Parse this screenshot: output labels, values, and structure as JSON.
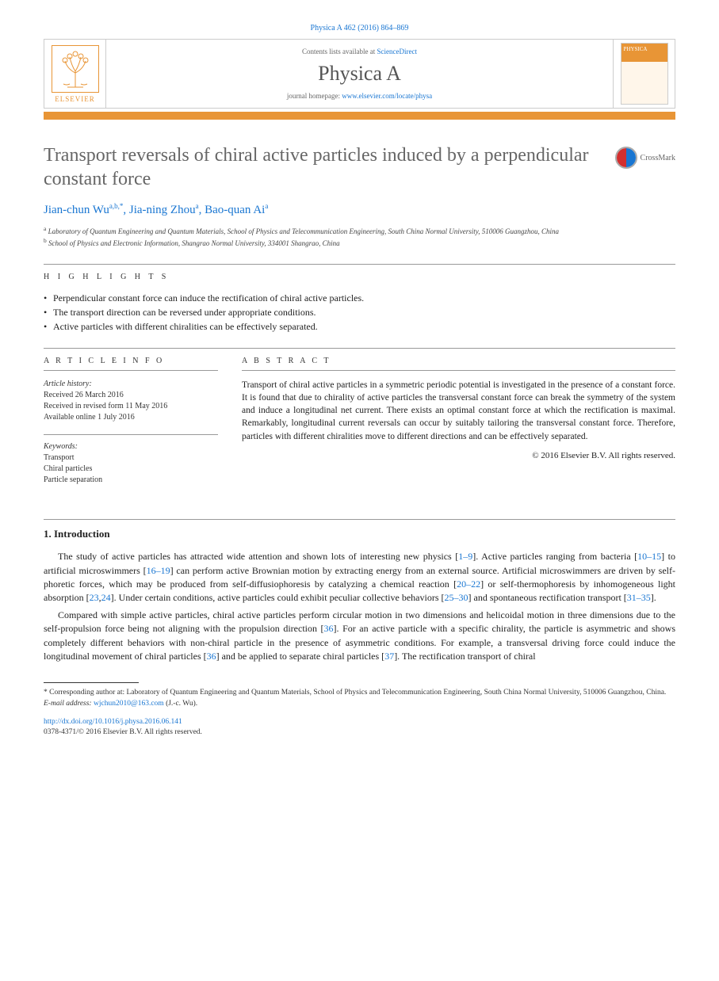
{
  "journal_ref": "Physica A 462 (2016) 864–869",
  "header": {
    "contents_prefix": "Contents lists available at ",
    "contents_link": "ScienceDirect",
    "journal_name": "Physica A",
    "homepage_prefix": "journal homepage: ",
    "homepage_url": "www.elsevier.com/locate/physa",
    "publisher": "ELSEVIER",
    "cover_label": "PHYSICA"
  },
  "title": "Transport reversals of chiral active particles induced by a perpendicular constant force",
  "crossmark": "CrossMark",
  "authors_html": "Jian-chun Wu<sup>a,b,*</sup>, Jia-ning Zhou<sup>a</sup>, Bao-quan Ai<sup>a</sup>",
  "affiliations": [
    {
      "sup": "a",
      "text": "Laboratory of Quantum Engineering and Quantum Materials, School of Physics and Telecommunication Engineering, South China Normal University, 510006 Guangzhou, China"
    },
    {
      "sup": "b",
      "text": "School of Physics and Electronic Information, Shangrao Normal University, 334001 Shangrao, China"
    }
  ],
  "highlights_label": "H I G H L I G H T S",
  "highlights": [
    "Perpendicular constant force can induce the rectification of chiral active particles.",
    "The transport direction can be reversed under appropriate conditions.",
    "Active particles with different chiralities can be effectively separated."
  ],
  "info_label": "A R T I C L E   I N F O",
  "abstract_label": "A B S T R A C T",
  "history": {
    "label": "Article history:",
    "items": [
      "Received 26 March 2016",
      "Received in revised form 11 May 2016",
      "Available online 1 July 2016"
    ]
  },
  "keywords": {
    "label": "Keywords:",
    "items": [
      "Transport",
      "Chiral particles",
      "Particle separation"
    ]
  },
  "abstract": "Transport of chiral active particles in a symmetric periodic potential is investigated in the presence of a constant force. It is found that due to chirality of active particles the transversal constant force can break the symmetry of the system and induce a longitudinal net current. There exists an optimal constant force at which the rectification is maximal. Remarkably, longitudinal current reversals can occur by suitably tailoring the transversal constant force. Therefore, particles with different chiralities move to different directions and can be effectively separated.",
  "abstract_copyright": "© 2016 Elsevier B.V. All rights reserved.",
  "section1": {
    "heading": "1. Introduction",
    "para1_parts": [
      "The study of active particles has attracted wide attention and shown lots of interesting new physics [",
      "1–9",
      "]. Active particles ranging from bacteria [",
      "10–15",
      "] to artificial microswimmers [",
      "16–19",
      "] can perform active Brownian motion by extracting energy from an external source. Artificial microswimmers are driven by self-phoretic forces, which may be produced from self-diffusiophoresis by catalyzing a chemical reaction [",
      "20–22",
      "] or self-thermophoresis by inhomogeneous light absorption [",
      "23",
      ",",
      "24",
      "]. Under certain conditions, active particles could exhibit peculiar collective behaviors [",
      "25–30",
      "] and spontaneous rectification transport [",
      "31–35",
      "]."
    ],
    "para2_parts": [
      "Compared with simple active particles, chiral active particles perform circular motion in two dimensions and helicoidal motion in three dimensions due to the self-propulsion force being not aligning with the propulsion direction [",
      "36",
      "]. For an active particle with a specific chirality, the particle is asymmetric and shows completely different behaviors with non-chiral particle in the presence of asymmetric conditions. For example, a transversal driving force could induce the longitudinal movement of chiral particles [",
      "36",
      "] and be applied to separate chiral particles [",
      "37",
      "]. The rectification transport of chiral"
    ]
  },
  "footnote": {
    "marker": "*",
    "text": "Corresponding author at: Laboratory of Quantum Engineering and Quantum Materials, School of Physics and Telecommunication Engineering, South China Normal University, 510006 Guangzhou, China.",
    "email_label": "E-mail address:",
    "email": "wjchun2010@163.com",
    "email_suffix": "(J.-c. Wu)."
  },
  "bottom": {
    "doi": "http://dx.doi.org/10.1016/j.physa.2016.06.141",
    "issn": "0378-4371/© 2016 Elsevier B.V. All rights reserved."
  },
  "colors": {
    "link": "#1976d2",
    "accent": "#e89536",
    "title_gray": "#666666"
  }
}
